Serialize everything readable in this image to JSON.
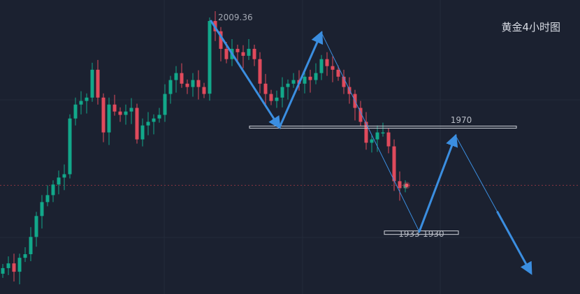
{
  "chart_data": {
    "type": "candlestick",
    "title": "黄金4小时图",
    "colors": {
      "up": "#12a88a",
      "down": "#e04a5c",
      "background": "#1b2130",
      "annotation": "#3b8ee0",
      "level_box": "#d0d3da",
      "current_price_line": "#8a3540"
    },
    "closes": [
      1919.4,
      1921.1,
      1918.1,
      1923.1,
      1924.4,
      1930.6,
      1938.1,
      1943.1,
      1945.6,
      1949.4,
      1951.9,
      1953.1,
      1973.1,
      1978.1,
      1979.4,
      1980.6,
      1990.6,
      1980.6,
      1968.1,
      1978.1,
      1975.6,
      1974.4,
      1975.6,
      1976.9,
      1965.6,
      1970.6,
      1971.9,
      1973.1,
      1974.4,
      1981.9,
      1986.9,
      1989.4,
      1985.6,
      1984.4,
      1986.9,
      1984.4,
      1981.9,
      2008.1,
      2004.4,
      1998.1,
      1994.4,
      1998.1,
      1996.9,
      1995.6,
      1998.1,
      1994.4,
      1985.6,
      1981.9,
      1979.4,
      1980.6,
      1984.4,
      1985.6,
      1986.9,
      1985.6,
      1988.1,
      1986.9,
      1989.4,
      1994.4,
      1991.9,
      1990.6,
      1988.1,
      1984.4,
      1981.9,
      1976.9,
      1971.9,
      1964.4,
      1965.6,
      1968.1,
      1968.1,
      1963.1,
      1950.6,
      1948.1,
      1949.4
    ],
    "high_label": "2009.36",
    "high_value": 2009.36,
    "current_price": 1949.1,
    "levels": [
      {
        "label": "1970",
        "value": 1970
      },
      {
        "label": "1933-1930",
        "low": 1930,
        "high": 1933
      }
    ],
    "projection_path": [
      {
        "bar": 37.25,
        "price": 2008.1
      },
      {
        "bar": 49.5,
        "price": 1969.9
      },
      {
        "bar": 57,
        "price": 2003.9
      },
      {
        "bar": 74.5,
        "price": 1932.5
      },
      {
        "bar": 81,
        "price": 1966.9
      },
      {
        "bar": 94.5,
        "price": 1917.6
      }
    ],
    "ylim": [
      1910,
      2016
    ]
  }
}
